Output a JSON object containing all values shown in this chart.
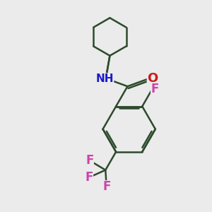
{
  "background_color": "#ebebeb",
  "bond_color": "#2d4a2d",
  "N_color": "#1a1acc",
  "O_color": "#cc1a1a",
  "F_color": "#cc44aa",
  "line_width": 1.8,
  "figsize": [
    3.0,
    3.0
  ],
  "dpi": 100,
  "xlim": [
    0,
    10
  ],
  "ylim": [
    0,
    10
  ]
}
